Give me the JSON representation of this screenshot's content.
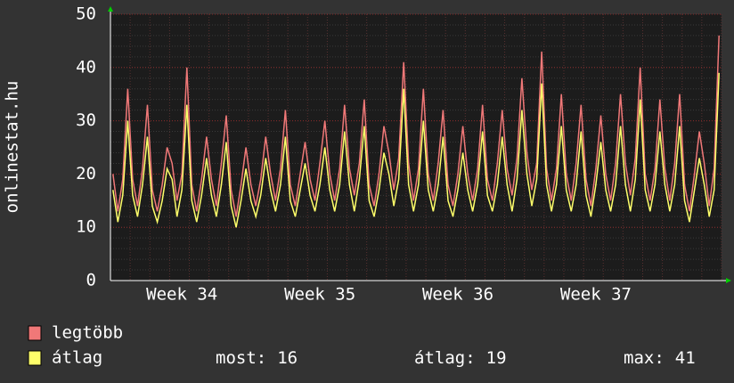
{
  "chart_data": {
    "type": "line",
    "y_label": "onlinestat.hu",
    "ylim": [
      0,
      50
    ],
    "yticks": [
      0,
      10,
      20,
      30,
      40,
      50
    ],
    "grid": true,
    "categories": [
      null,
      null,
      null,
      null,
      null,
      null,
      null,
      null,
      null,
      null,
      null,
      null,
      null,
      null,
      "Week 34",
      null,
      null,
      null,
      null,
      null,
      null,
      null,
      null,
      null,
      null,
      null,
      null,
      null,
      null,
      null,
      null,
      null,
      null,
      null,
      null,
      null,
      null,
      null,
      null,
      null,
      null,
      null,
      "Week 35",
      null,
      null,
      null,
      null,
      null,
      null,
      null,
      null,
      null,
      null,
      null,
      null,
      null,
      null,
      null,
      null,
      null,
      null,
      null,
      null,
      null,
      null,
      null,
      null,
      null,
      null,
      null,
      "Week 36",
      null,
      null,
      null,
      null,
      null,
      null,
      null,
      null,
      null,
      null,
      null,
      null,
      null,
      null,
      null,
      null,
      null,
      null,
      null,
      null,
      null,
      null,
      null,
      null,
      null,
      null,
      null,
      "Week 37",
      null,
      null,
      null,
      null,
      null,
      null,
      null,
      null,
      null,
      null,
      null,
      null,
      null,
      null,
      null,
      null,
      null,
      null,
      null,
      null,
      null,
      null,
      null,
      null,
      null
    ],
    "series": [
      {
        "name": "legtöbb",
        "color": "#f07878",
        "values": [
          20,
          13,
          19,
          36,
          19,
          14,
          21,
          33,
          17,
          13,
          18,
          25,
          22,
          15,
          20,
          40,
          18,
          13,
          19,
          27,
          19,
          14,
          22,
          31,
          17,
          12,
          18,
          25,
          18,
          14,
          19,
          27,
          20,
          15,
          21,
          32,
          18,
          14,
          20,
          26,
          19,
          15,
          22,
          30,
          20,
          15,
          21,
          33,
          21,
          16,
          22,
          34,
          18,
          14,
          20,
          29,
          24,
          17,
          23,
          41,
          22,
          15,
          21,
          36,
          20,
          15,
          22,
          32,
          18,
          14,
          20,
          29,
          20,
          15,
          21,
          33,
          19,
          15,
          22,
          32,
          21,
          16,
          23,
          38,
          24,
          17,
          22,
          43,
          21,
          15,
          21,
          35,
          20,
          15,
          22,
          33,
          19,
          14,
          21,
          31,
          20,
          15,
          22,
          35,
          22,
          16,
          23,
          40,
          20,
          15,
          21,
          34,
          21,
          15,
          22,
          35,
          18,
          13,
          20,
          28,
          22,
          14,
          21,
          46
        ]
      },
      {
        "name": "átlag",
        "color": "#ffff6a",
        "values": [
          17,
          11,
          16,
          30,
          16,
          12,
          18,
          27,
          14,
          11,
          15,
          21,
          19,
          12,
          17,
          33,
          15,
          11,
          16,
          23,
          16,
          12,
          18,
          26,
          14,
          10,
          15,
          21,
          15,
          12,
          16,
          23,
          17,
          13,
          18,
          27,
          15,
          12,
          17,
          22,
          16,
          13,
          18,
          25,
          17,
          13,
          18,
          28,
          18,
          13,
          19,
          29,
          15,
          12,
          17,
          24,
          20,
          14,
          19,
          36,
          18,
          13,
          18,
          30,
          17,
          13,
          18,
          27,
          15,
          12,
          17,
          24,
          17,
          13,
          18,
          28,
          16,
          13,
          18,
          27,
          18,
          13,
          19,
          32,
          20,
          14,
          19,
          37,
          18,
          13,
          18,
          29,
          17,
          13,
          18,
          28,
          16,
          12,
          18,
          26,
          17,
          13,
          18,
          29,
          18,
          13,
          19,
          34,
          17,
          13,
          18,
          28,
          18,
          13,
          18,
          29,
          15,
          11,
          17,
          23,
          18,
          12,
          17,
          39
        ]
      }
    ],
    "stats": [
      {
        "label": "most:",
        "value": 16
      },
      {
        "label": "átlag:",
        "value": 19
      },
      {
        "label": "max:",
        "value": 41
      }
    ]
  }
}
